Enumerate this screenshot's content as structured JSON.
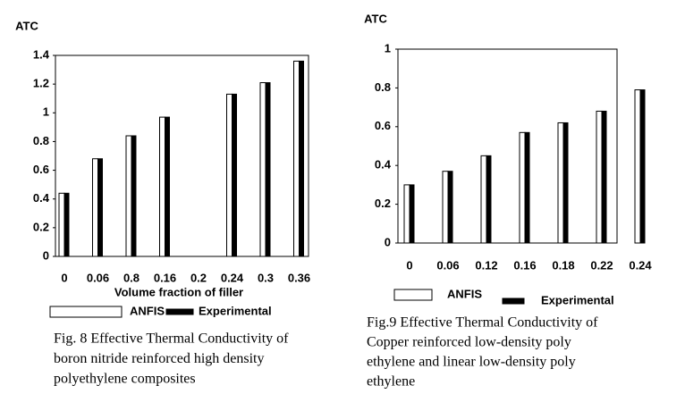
{
  "chart_data": [
    {
      "type": "bar",
      "y_label": "ATC",
      "x_label": "Volume fraction of filler",
      "categories": [
        "0",
        "0.06",
        "0.8",
        "0.16",
        "0.2",
        "0.24",
        "0.3",
        "0.36"
      ],
      "series": [
        {
          "name": "ANFIS",
          "color": "#ffffff",
          "values": [
            0.44,
            0.68,
            0.84,
            0.97,
            null,
            1.13,
            1.21,
            1.36
          ]
        },
        {
          "name": "Experimental",
          "color": "#000000",
          "values": [
            0.44,
            0.68,
            0.84,
            0.97,
            null,
            1.13,
            1.21,
            1.36
          ]
        }
      ],
      "ylim": [
        0,
        1.4
      ],
      "yticks": [
        0,
        0.2,
        0.4,
        0.6,
        0.8,
        1,
        1.2,
        1.4
      ],
      "caption": [
        "Fig. 8 Effective Thermal Conductivity of",
        "boron nitride reinforced high density",
        "polyethylene composites"
      ]
    },
    {
      "type": "bar",
      "y_label": "ATC",
      "categories": [
        "0",
        "0.06",
        "0.12",
        "0.16",
        "0.18",
        "0.22",
        "0.24"
      ],
      "series": [
        {
          "name": "ANFIS",
          "color": "#ffffff",
          "values": [
            0.3,
            0.37,
            0.45,
            0.57,
            0.62,
            0.68,
            0.79
          ]
        },
        {
          "name": "Experimental",
          "color": "#000000",
          "values": [
            0.3,
            0.37,
            0.45,
            0.57,
            0.62,
            0.68,
            0.79
          ]
        }
      ],
      "ylim": [
        0,
        1
      ],
      "yticks": [
        0,
        0.2,
        0.4,
        0.6,
        0.8,
        1
      ],
      "caption": [
        "Fig.9 Effective Thermal Conductivity of",
        "Copper reinforced low-density poly",
        "ethylene and linear low-density poly",
        "ethylene"
      ]
    }
  ]
}
